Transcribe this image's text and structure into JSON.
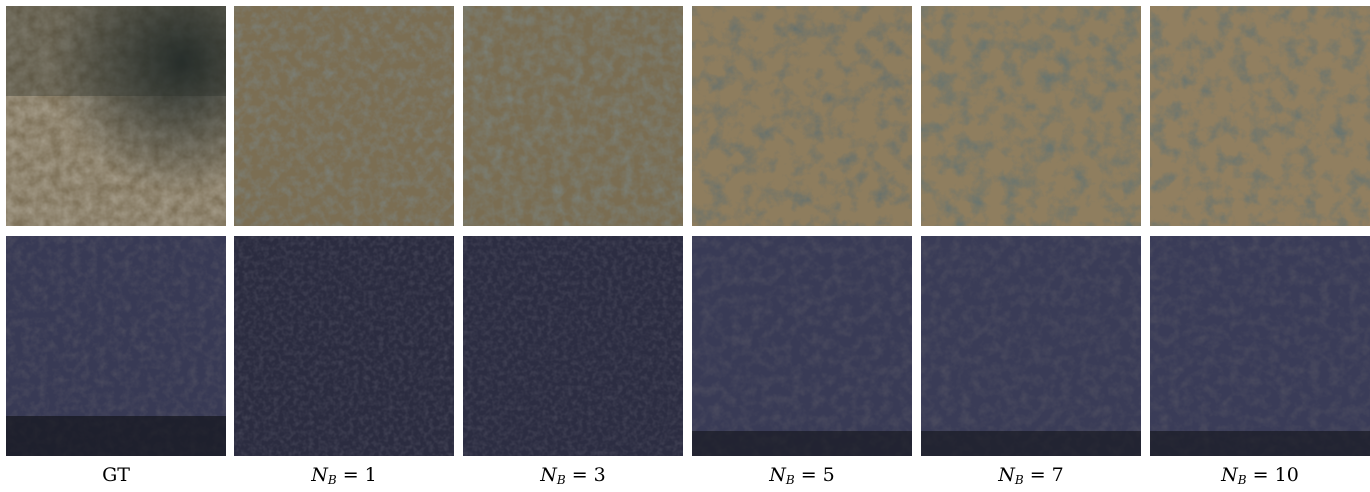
{
  "columns": [
    {
      "id": "gt",
      "label": "GT"
    },
    {
      "id": "nb1",
      "label_var": "N",
      "label_sub": "B",
      "label_eq": " = 1"
    },
    {
      "id": "nb3",
      "label_var": "N",
      "label_sub": "B",
      "label_eq": " = 3"
    },
    {
      "id": "nb5",
      "label_var": "N",
      "label_sub": "B",
      "label_eq": " = 5"
    },
    {
      "id": "nb7",
      "label_var": "N",
      "label_sub": "B",
      "label_eq": " = 7"
    },
    {
      "id": "nb10",
      "label_var": "N",
      "label_sub": "B",
      "label_eq": " = 10"
    }
  ],
  "rows": [
    {
      "id": "arid-terrain",
      "base_color": "#6f6550",
      "spot_color": "#1f2a2a",
      "light_color": "#9a8a6c"
    },
    {
      "id": "forest-canopy",
      "base_color": "#2e2f47",
      "spot_color": "#15161f",
      "light_color": "#4a4c66"
    }
  ]
}
